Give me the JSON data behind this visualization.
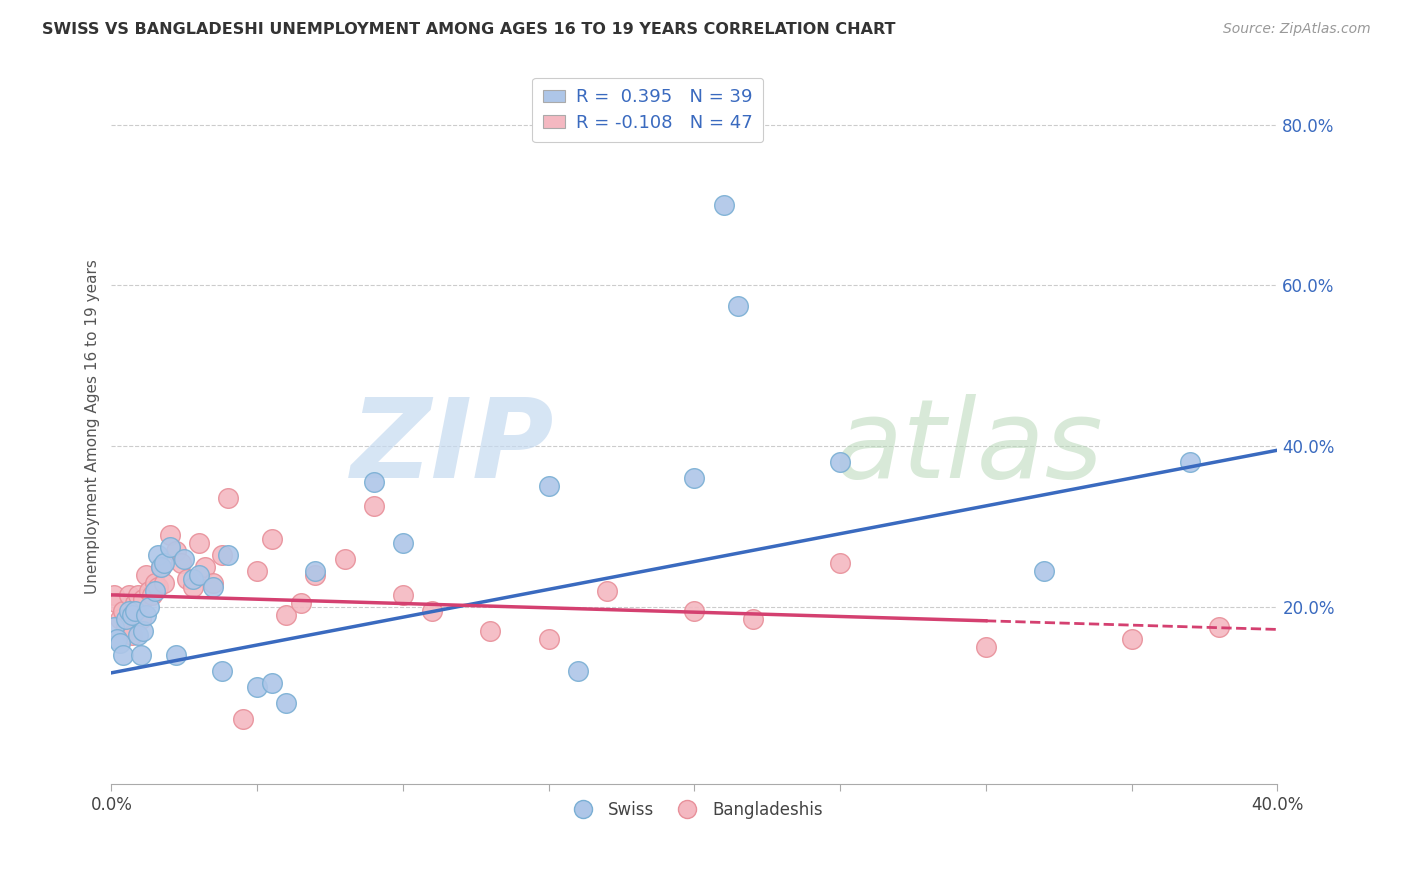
{
  "title": "SWISS VS BANGLADESHI UNEMPLOYMENT AMONG AGES 16 TO 19 YEARS CORRELATION CHART",
  "source": "Source: ZipAtlas.com",
  "ylabel": "Unemployment Among Ages 16 to 19 years",
  "x_range": [
    0.0,
    0.4
  ],
  "y_range": [
    -0.02,
    0.87
  ],
  "swiss_color": "#aec6e8",
  "bangladeshi_color": "#f4b8c1",
  "swiss_edge": "#7aafd4",
  "bangladeshi_edge": "#e8909a",
  "line_swiss": "#3a6abf",
  "line_bangladeshi": "#d44070",
  "legend_swiss_label": "R =  0.395   N = 39",
  "legend_bangladeshi_label": "R = -0.108   N = 47",
  "legend_label_swiss": "Swiss",
  "legend_label_bangladeshi": "Bangladeshis",
  "swiss_line_start_y": 0.118,
  "swiss_line_end_y": 0.395,
  "bangladeshi_line_start_y": 0.215,
  "bangladeshi_line_end_y": 0.172,
  "swiss_x": [
    0.001,
    0.002,
    0.003,
    0.004,
    0.005,
    0.006,
    0.007,
    0.008,
    0.009,
    0.01,
    0.011,
    0.012,
    0.013,
    0.015,
    0.016,
    0.017,
    0.018,
    0.02,
    0.022,
    0.025,
    0.028,
    0.03,
    0.035,
    0.038,
    0.04,
    0.05,
    0.055,
    0.06,
    0.07,
    0.09,
    0.1,
    0.15,
    0.16,
    0.2,
    0.21,
    0.215,
    0.25,
    0.32,
    0.37
  ],
  "swiss_y": [
    0.175,
    0.16,
    0.155,
    0.14,
    0.185,
    0.195,
    0.19,
    0.195,
    0.165,
    0.14,
    0.17,
    0.19,
    0.2,
    0.22,
    0.265,
    0.25,
    0.255,
    0.275,
    0.14,
    0.26,
    0.235,
    0.24,
    0.225,
    0.12,
    0.265,
    0.1,
    0.105,
    0.08,
    0.245,
    0.355,
    0.28,
    0.35,
    0.12,
    0.36,
    0.7,
    0.575,
    0.38,
    0.245,
    0.38
  ],
  "bangladeshi_x": [
    0.001,
    0.002,
    0.003,
    0.004,
    0.005,
    0.006,
    0.007,
    0.008,
    0.009,
    0.01,
    0.011,
    0.012,
    0.013,
    0.014,
    0.015,
    0.016,
    0.017,
    0.018,
    0.02,
    0.022,
    0.024,
    0.026,
    0.028,
    0.03,
    0.032,
    0.035,
    0.038,
    0.04,
    0.045,
    0.05,
    0.055,
    0.06,
    0.065,
    0.07,
    0.08,
    0.09,
    0.1,
    0.11,
    0.13,
    0.15,
    0.17,
    0.2,
    0.22,
    0.25,
    0.3,
    0.35,
    0.38
  ],
  "bangladeshi_y": [
    0.215,
    0.205,
    0.185,
    0.195,
    0.175,
    0.215,
    0.165,
    0.205,
    0.215,
    0.185,
    0.21,
    0.24,
    0.22,
    0.215,
    0.23,
    0.225,
    0.25,
    0.23,
    0.29,
    0.27,
    0.255,
    0.235,
    0.225,
    0.28,
    0.25,
    0.23,
    0.265,
    0.335,
    0.06,
    0.245,
    0.285,
    0.19,
    0.205,
    0.24,
    0.26,
    0.325,
    0.215,
    0.195,
    0.17,
    0.16,
    0.22,
    0.195,
    0.185,
    0.255,
    0.15,
    0.16,
    0.175
  ],
  "x_tick_positions": [
    0.0,
    0.05,
    0.1,
    0.15,
    0.2,
    0.25,
    0.3,
    0.35,
    0.4
  ],
  "y_tick_positions": [
    0.2,
    0.4,
    0.6,
    0.8
  ]
}
